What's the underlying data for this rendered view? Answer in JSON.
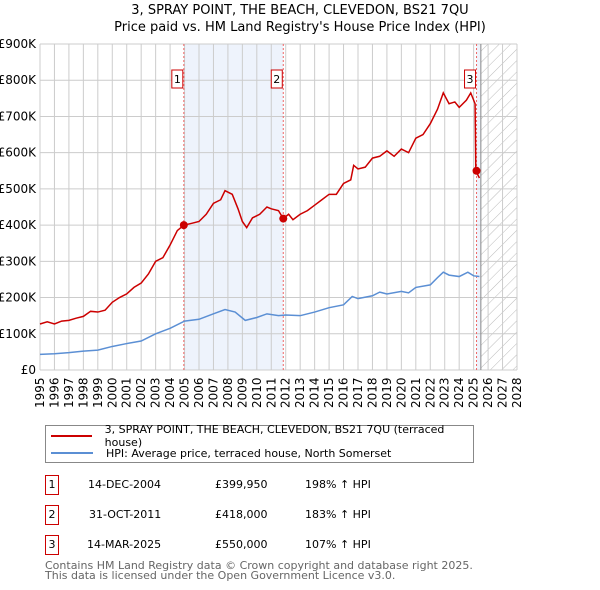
{
  "chart_data": {
    "type": "line",
    "title": "3, SPRAY POINT, THE BEACH, CLEVEDON, BS21 7QU",
    "subtitle": "Price paid vs. HM Land Registry's House Price Index (HPI)",
    "xlim": [
      1995,
      2028
    ],
    "ylim": [
      0,
      900000
    ],
    "x_ticks": [
      "1995",
      "1996",
      "1997",
      "1998",
      "1999",
      "2000",
      "2001",
      "2002",
      "2003",
      "2004",
      "2005",
      "2006",
      "2007",
      "2008",
      "2009",
      "2010",
      "2011",
      "2012",
      "2013",
      "2014",
      "2015",
      "2016",
      "2017",
      "2018",
      "2019",
      "2020",
      "2021",
      "2022",
      "2023",
      "2024",
      "2025",
      "2026",
      "2027",
      "2028"
    ],
    "y_ticks": [
      "£0",
      "£100K",
      "£200K",
      "£300K",
      "£400K",
      "£500K",
      "£600K",
      "£700K",
      "£800K",
      "£900K"
    ],
    "grid": true,
    "forecast_from": 2025.5,
    "series": [
      {
        "name": "3, SPRAY POINT, THE BEACH, CLEVEDON, BS21 7QU (terraced house)",
        "color": "#cc0000",
        "x": [
          1995,
          1995.5,
          1996,
          1996.5,
          1997,
          1997.5,
          1998,
          1998.5,
          1999,
          1999.5,
          2000,
          2000.5,
          2001,
          2001.5,
          2002,
          2002.5,
          2003,
          2003.5,
          2004,
          2004.5,
          2004.95,
          2005.5,
          2006,
          2006.5,
          2007,
          2007.5,
          2007.8,
          2008.3,
          2008.7,
          2009,
          2009.3,
          2009.7,
          2010.2,
          2010.7,
          2011,
          2011.5,
          2011.83,
          2012.2,
          2012.5,
          2013,
          2013.5,
          2014,
          2014.5,
          2015,
          2015.5,
          2016,
          2016.5,
          2016.7,
          2017,
          2017.5,
          2018,
          2018.5,
          2019,
          2019.5,
          2020,
          2020.5,
          2021,
          2021.5,
          2022,
          2022.5,
          2022.9,
          2023.3,
          2023.7,
          2024,
          2024.5,
          2024.8,
          2025.1,
          2025.15,
          2025.4
        ],
        "y": [
          127000,
          133000,
          127000,
          135000,
          137000,
          143000,
          148000,
          162000,
          160000,
          165000,
          187000,
          200000,
          210000,
          228000,
          240000,
          265000,
          300000,
          310000,
          345000,
          385000,
          399950,
          405000,
          410000,
          430000,
          460000,
          470000,
          495000,
          485000,
          445000,
          410000,
          393000,
          420000,
          430000,
          450000,
          445000,
          440000,
          418000,
          430000,
          415000,
          430000,
          440000,
          455000,
          470000,
          485000,
          485000,
          515000,
          525000,
          565000,
          555000,
          560000,
          585000,
          590000,
          605000,
          590000,
          610000,
          600000,
          640000,
          650000,
          680000,
          720000,
          765000,
          735000,
          740000,
          725000,
          745000,
          765000,
          735000,
          550000,
          530000
        ]
      },
      {
        "name": "HPI: Average price, terraced house, North Somerset",
        "color": "#5b8fd4",
        "x": [
          1995,
          1996,
          1997,
          1998,
          1999,
          2000,
          2001,
          2002,
          2003,
          2004,
          2005,
          2006,
          2007,
          2007.8,
          2008.5,
          2009.2,
          2010,
          2010.7,
          2011.5,
          2012,
          2013,
          2014,
          2015,
          2016,
          2016.6,
          2017,
          2018,
          2018.5,
          2019,
          2020,
          2020.5,
          2021,
          2022,
          2022.5,
          2022.9,
          2023.3,
          2024,
          2024.6,
          2025,
          2025.4
        ],
        "y": [
          43000,
          45000,
          48000,
          52000,
          55000,
          65000,
          73000,
          80000,
          100000,
          115000,
          135000,
          140000,
          155000,
          167000,
          160000,
          137000,
          145000,
          155000,
          150000,
          152000,
          150000,
          160000,
          172000,
          180000,
          203000,
          197000,
          205000,
          215000,
          210000,
          217000,
          213000,
          228000,
          235000,
          255000,
          270000,
          262000,
          258000,
          270000,
          260000,
          258000
        ]
      }
    ],
    "sales": [
      {
        "label": "1",
        "x": 2004.95,
        "y": 399950,
        "date": "14-DEC-2004",
        "price": "£399,950",
        "hpi": "198% ↑ HPI"
      },
      {
        "label": "2",
        "x": 2011.83,
        "y": 418000,
        "date": "31-OCT-2011",
        "price": "£418,000",
        "hpi": "183% ↑ HPI"
      },
      {
        "label": "3",
        "x": 2025.2,
        "y": 550000,
        "date": "14-MAR-2025",
        "price": "£550,000",
        "hpi": "107% ↑ HPI"
      }
    ]
  },
  "footer": [
    "Contains HM Land Registry data © Crown copyright and database right 2025.",
    "This data is licensed under the Open Government Licence v3.0."
  ]
}
